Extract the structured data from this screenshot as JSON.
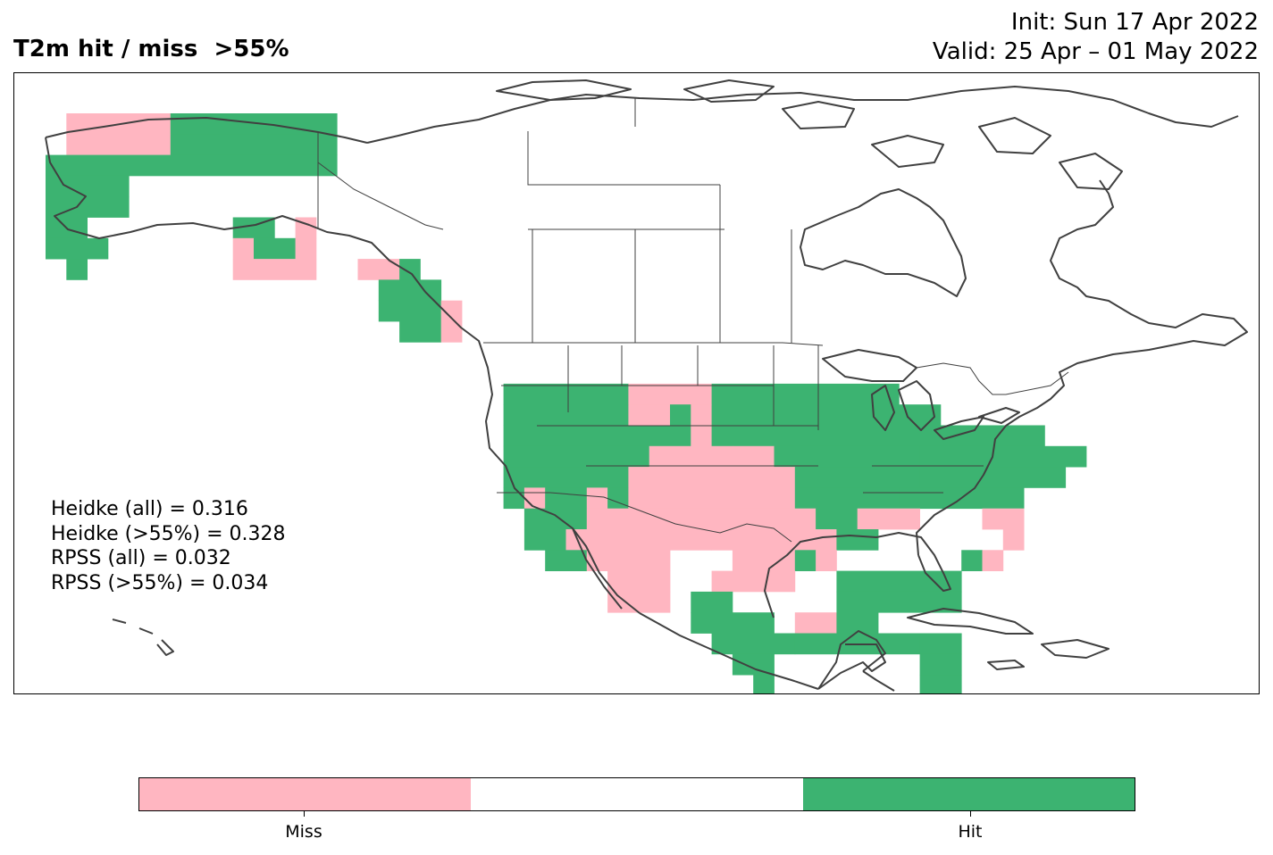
{
  "title": "T2m hit / miss  >55%",
  "init": "Init: Sun 17 Apr 2022",
  "valid": "Valid: 25 Apr – 01 May 2022",
  "scores": [
    "Heidke (all) = 0.316",
    "Heidke (>55%) = 0.328",
    "RPSS (all) = 0.032",
    "RPSS (>55%) = 0.034"
  ],
  "colors": {
    "miss": "#FFB6C1",
    "neutral": "#FFFFFF",
    "hit": "#3CB371",
    "coast": "#404040"
  },
  "colorbar": {
    "labels": {
      "miss": "Miss",
      "hit": "Hit"
    }
  }
}
